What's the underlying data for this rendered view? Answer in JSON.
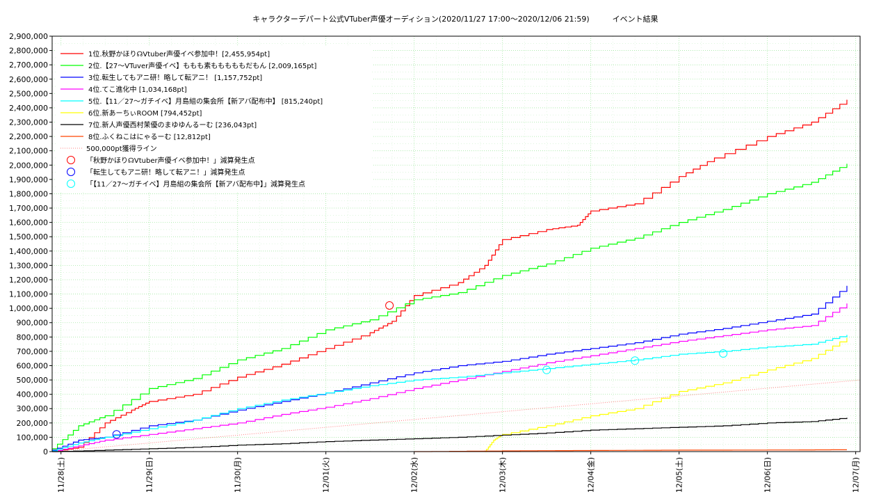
{
  "chart_data": {
    "type": "line",
    "title": "キャラクターデパート公式VTuber声優オーディション(2020/11/27 17:00～2020/12/06 21:59)　　　イベント結果",
    "xlabel": "",
    "ylabel": "",
    "x_categories": [
      "11/28(土)",
      "11/29(日)",
      "11/30(月)",
      "12/01(火)",
      "12/02(水)",
      "12/03(木)",
      "12/04(金)",
      "12/05(土)",
      "12/06(日)",
      "12/07(月)"
    ],
    "x_range_days": [
      -0.1,
      9.05
    ],
    "ylim": [
      0,
      2900000
    ],
    "y_ticks": [
      "0",
      "100,000",
      "200,000",
      "300,000",
      "400,000",
      "500,000",
      "600,000",
      "700,000",
      "800,000",
      "900,000",
      "1,000,000",
      "1,100,000",
      "1,200,000",
      "1,300,000",
      "1,400,000",
      "1,500,000",
      "1,600,000",
      "1,700,000",
      "1,800,000",
      "1,900,000",
      "2,000,000",
      "2,100,000",
      "2,200,000",
      "2,300,000",
      "2,400,000",
      "2,500,000",
      "2,600,000",
      "2,700,000",
      "2,800,000",
      "2,900,000"
    ],
    "grid": true,
    "legend_position": "top-left",
    "series": [
      {
        "name": "1位.秋野かほり☊Vtuber声優イベ参加中！[2,455,954pt]",
        "color": "#ff0000",
        "points": [
          [
            -0.1,
            0
          ],
          [
            0.2,
            30000
          ],
          [
            0.5,
            200000
          ],
          [
            0.8,
            290000
          ],
          [
            1.0,
            350000
          ],
          [
            1.5,
            400000
          ],
          [
            2.0,
            520000
          ],
          [
            2.5,
            610000
          ],
          [
            3.0,
            720000
          ],
          [
            3.5,
            830000
          ],
          [
            3.75,
            910000
          ],
          [
            4.0,
            1090000
          ],
          [
            4.5,
            1180000
          ],
          [
            4.8,
            1300000
          ],
          [
            5.0,
            1480000
          ],
          [
            5.5,
            1550000
          ],
          [
            5.85,
            1580000
          ],
          [
            6.0,
            1680000
          ],
          [
            6.5,
            1730000
          ],
          [
            7.0,
            1920000
          ],
          [
            7.4,
            2050000
          ],
          [
            8.0,
            2200000
          ],
          [
            8.5,
            2300000
          ],
          [
            8.9,
            2455954
          ]
        ]
      },
      {
        "name": "2位.【27～VTuver声優イベ】ももも素もももももだもん [2,009,165pt]",
        "color": "#00ff00",
        "points": [
          [
            -0.1,
            20000
          ],
          [
            0.2,
            180000
          ],
          [
            0.5,
            250000
          ],
          [
            1.0,
            440000
          ],
          [
            1.5,
            510000
          ],
          [
            2.0,
            640000
          ],
          [
            2.5,
            720000
          ],
          [
            3.0,
            850000
          ],
          [
            3.5,
            920000
          ],
          [
            4.0,
            1060000
          ],
          [
            4.5,
            1110000
          ],
          [
            5.0,
            1230000
          ],
          [
            5.5,
            1310000
          ],
          [
            6.0,
            1420000
          ],
          [
            6.5,
            1490000
          ],
          [
            7.0,
            1600000
          ],
          [
            7.5,
            1690000
          ],
          [
            8.0,
            1800000
          ],
          [
            8.5,
            1880000
          ],
          [
            8.9,
            2009165
          ]
        ]
      },
      {
        "name": "3位.転生してもアニ研！略して転アニ！ [1,157,752pt]",
        "color": "#0000ff",
        "points": [
          [
            -0.1,
            10000
          ],
          [
            0.2,
            80000
          ],
          [
            0.5,
            100000
          ],
          [
            1.0,
            180000
          ],
          [
            1.5,
            220000
          ],
          [
            2.0,
            290000
          ],
          [
            2.5,
            350000
          ],
          [
            3.0,
            410000
          ],
          [
            3.5,
            480000
          ],
          [
            4.0,
            550000
          ],
          [
            4.5,
            600000
          ],
          [
            5.0,
            630000
          ],
          [
            5.5,
            680000
          ],
          [
            6.0,
            720000
          ],
          [
            6.5,
            760000
          ],
          [
            7.0,
            820000
          ],
          [
            7.5,
            860000
          ],
          [
            8.0,
            910000
          ],
          [
            8.5,
            960000
          ],
          [
            8.9,
            1157752
          ]
        ]
      },
      {
        "name": "4位.てこ進化中 [1,034,168pt]",
        "color": "#ff00ff",
        "points": [
          [
            -0.1,
            0
          ],
          [
            0.2,
            40000
          ],
          [
            0.5,
            80000
          ],
          [
            1.0,
            120000
          ],
          [
            1.5,
            160000
          ],
          [
            2.0,
            200000
          ],
          [
            2.5,
            260000
          ],
          [
            3.0,
            310000
          ],
          [
            3.5,
            370000
          ],
          [
            4.0,
            440000
          ],
          [
            4.5,
            500000
          ],
          [
            5.0,
            560000
          ],
          [
            5.5,
            620000
          ],
          [
            6.0,
            670000
          ],
          [
            6.5,
            720000
          ],
          [
            7.0,
            770000
          ],
          [
            7.5,
            810000
          ],
          [
            8.0,
            850000
          ],
          [
            8.5,
            880000
          ],
          [
            8.9,
            1034168
          ]
        ]
      },
      {
        "name": "5位.【11／27～ガチイベ】月島組の集会所【新アバ配布中】 [815,240pt]",
        "color": "#00ffff",
        "points": [
          [
            -0.1,
            5000
          ],
          [
            0.2,
            60000
          ],
          [
            0.5,
            100000
          ],
          [
            1.0,
            160000
          ],
          [
            1.5,
            220000
          ],
          [
            2.0,
            300000
          ],
          [
            2.5,
            360000
          ],
          [
            3.0,
            410000
          ],
          [
            3.5,
            460000
          ],
          [
            4.0,
            500000
          ],
          [
            4.5,
            520000
          ],
          [
            5.0,
            550000
          ],
          [
            5.5,
            580000
          ],
          [
            6.0,
            610000
          ],
          [
            6.5,
            640000
          ],
          [
            7.0,
            680000
          ],
          [
            7.5,
            700000
          ],
          [
            8.0,
            730000
          ],
          [
            8.5,
            750000
          ],
          [
            8.9,
            815240
          ]
        ]
      },
      {
        "name": "6位.新あーちぃROOM [794,452pt]",
        "color": "#ffff00",
        "points": [
          [
            4.8,
            0
          ],
          [
            4.9,
            80000
          ],
          [
            5.0,
            120000
          ],
          [
            5.5,
            180000
          ],
          [
            6.0,
            250000
          ],
          [
            6.5,
            300000
          ],
          [
            7.0,
            420000
          ],
          [
            7.5,
            480000
          ],
          [
            8.0,
            570000
          ],
          [
            8.5,
            650000
          ],
          [
            8.9,
            794452
          ]
        ]
      },
      {
        "name": "7位.新人声優西村茉優のまゆゆんるーむ [236,043pt]",
        "color": "#000000",
        "points": [
          [
            -0.1,
            0
          ],
          [
            0.5,
            10000
          ],
          [
            1.0,
            20000
          ],
          [
            1.5,
            30000
          ],
          [
            2.0,
            45000
          ],
          [
            2.5,
            55000
          ],
          [
            3.0,
            70000
          ],
          [
            3.5,
            80000
          ],
          [
            4.0,
            90000
          ],
          [
            4.5,
            100000
          ],
          [
            5.0,
            115000
          ],
          [
            5.5,
            130000
          ],
          [
            6.0,
            150000
          ],
          [
            6.5,
            160000
          ],
          [
            7.0,
            170000
          ],
          [
            7.5,
            180000
          ],
          [
            8.0,
            200000
          ],
          [
            8.5,
            210000
          ],
          [
            8.9,
            236043
          ]
        ]
      },
      {
        "name": "8位.ふくねこはにゃるーむ [12,812pt]",
        "color": "#ff4500",
        "points": [
          [
            4.0,
            0
          ],
          [
            5.0,
            5000
          ],
          [
            6.0,
            8000
          ],
          [
            7.0,
            10000
          ],
          [
            8.0,
            11000
          ],
          [
            8.9,
            12812
          ]
        ]
      }
    ],
    "reference_line": {
      "name": "500,000pt獲得ライン",
      "color": "#ff8080",
      "points": [
        [
          -0.1,
          0
        ],
        [
          9.05,
          500000
        ]
      ]
    },
    "deduction_markers": [
      {
        "name": "「秋野かほり☊Vtuber声優イベ参加中！」減算発生点",
        "color": "#ff0000",
        "points": [
          [
            3.72,
            1020000
          ]
        ]
      },
      {
        "name": "「転生してもアニ研！略して転アニ！」減算発生点",
        "color": "#0000ff",
        "points": [
          [
            0.63,
            120000
          ]
        ]
      },
      {
        "name": "「【11／27～ガチイベ】月島組の集会所【新アバ配布中】」減算発生点",
        "color": "#00ffff",
        "points": [
          [
            5.5,
            570000
          ],
          [
            6.5,
            635000
          ],
          [
            7.5,
            685000
          ]
        ]
      }
    ]
  }
}
